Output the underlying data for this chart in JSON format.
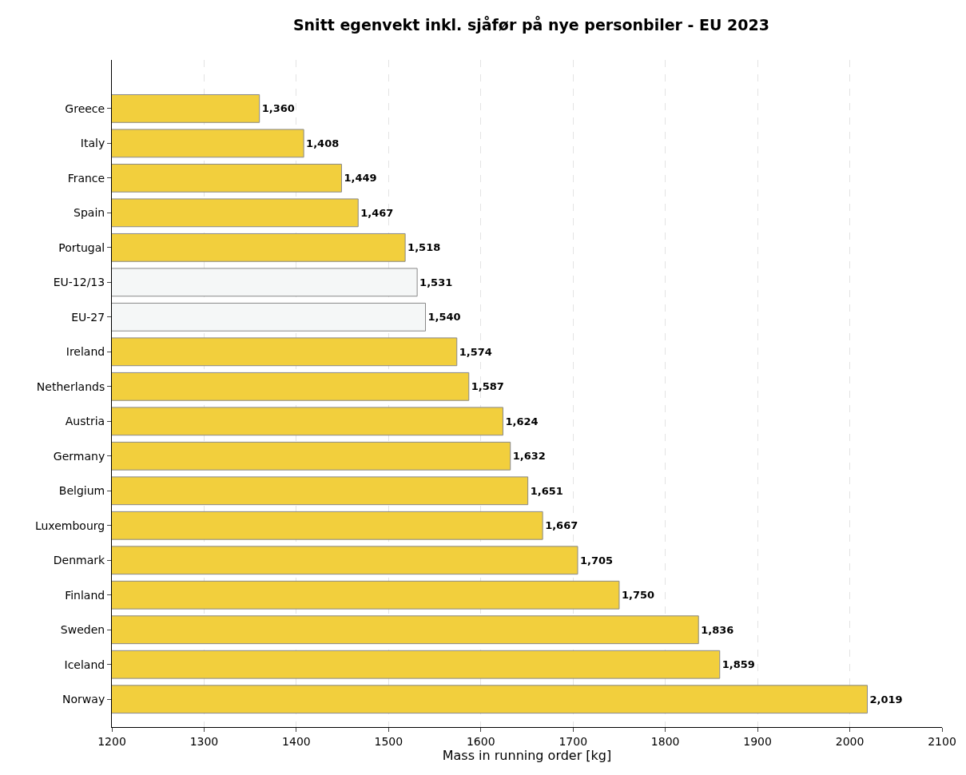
{
  "chart_data": {
    "type": "bar",
    "orientation": "horizontal",
    "title": "Snitt egenvekt inkl. sjåfør på nye personbiler - EU 2023",
    "xlabel": "Mass in running order [kg]",
    "categories": [
      "Greece",
      "Italy",
      "France",
      "Spain",
      "Portugal",
      "EU-12/13",
      "EU-27",
      "Ireland",
      "Netherlands",
      "Austria",
      "Germany",
      "Belgium",
      "Luxembourg",
      "Denmark",
      "Finland",
      "Sweden",
      "Iceland",
      "Norway"
    ],
    "values": [
      1360,
      1408,
      1449,
      1467,
      1518,
      1531,
      1540,
      1574,
      1587,
      1624,
      1632,
      1651,
      1667,
      1705,
      1750,
      1836,
      1859,
      2019
    ],
    "colors": [
      "#f2cf3d",
      "#f2cf3d",
      "#f2cf3d",
      "#f2cf3d",
      "#f2cf3d",
      "#f5f7f7",
      "#f5f7f7",
      "#f2cf3d",
      "#f2cf3d",
      "#f2cf3d",
      "#f2cf3d",
      "#f2cf3d",
      "#f2cf3d",
      "#f2cf3d",
      "#f2cf3d",
      "#f2cf3d",
      "#f2cf3d",
      "#f2cf3d"
    ],
    "value_labels": [
      "1,360",
      "1,408",
      "1,449",
      "1,467",
      "1,518",
      "1,531",
      "1,540",
      "1,574",
      "1,587",
      "1,624",
      "1,632",
      "1,651",
      "1,667",
      "1,705",
      "1,750",
      "1,836",
      "1,859",
      "2,019"
    ],
    "xlim": [
      1200,
      2100
    ],
    "xticks": [
      1200,
      1300,
      1400,
      1500,
      1600,
      1700,
      1800,
      1900,
      2000,
      2100
    ],
    "grid": "x",
    "legend": false
  }
}
